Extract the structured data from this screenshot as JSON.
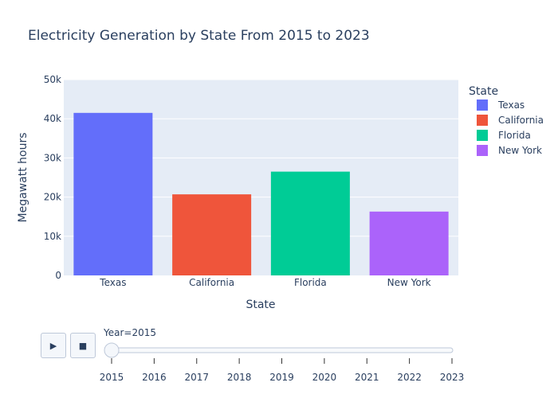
{
  "chart_data": {
    "type": "bar",
    "title": "Electricity Generation by State From 2015 to 2023",
    "xlabel": "State",
    "ylabel": "Megawatt hours",
    "categories": [
      "Texas",
      "California",
      "Florida",
      "New York"
    ],
    "values": [
      41500,
      20700,
      26500,
      16300
    ],
    "colors": [
      "#636efa",
      "#ef553b",
      "#00cc96",
      "#ab63fa"
    ],
    "ylim": [
      0,
      50000
    ],
    "yticks": [
      {
        "value": 0,
        "label": "0"
      },
      {
        "value": 10000,
        "label": "10k"
      },
      {
        "value": 20000,
        "label": "20k"
      },
      {
        "value": 30000,
        "label": "30k"
      },
      {
        "value": 40000,
        "label": "40k"
      },
      {
        "value": 50000,
        "label": "50k"
      }
    ],
    "grid": true,
    "legend": {
      "title": "State",
      "placement": "right",
      "entries": [
        "Texas",
        "California",
        "Florida",
        "New York"
      ]
    }
  },
  "slider": {
    "current_label": "Year=2015",
    "years": [
      "2015",
      "2016",
      "2017",
      "2018",
      "2019",
      "2020",
      "2021",
      "2022",
      "2023"
    ],
    "selected_index": 0
  },
  "controls": {
    "play_icon": "play-icon",
    "stop_icon": "stop-icon",
    "play_glyph": "▶",
    "stop_glyph": "■"
  }
}
